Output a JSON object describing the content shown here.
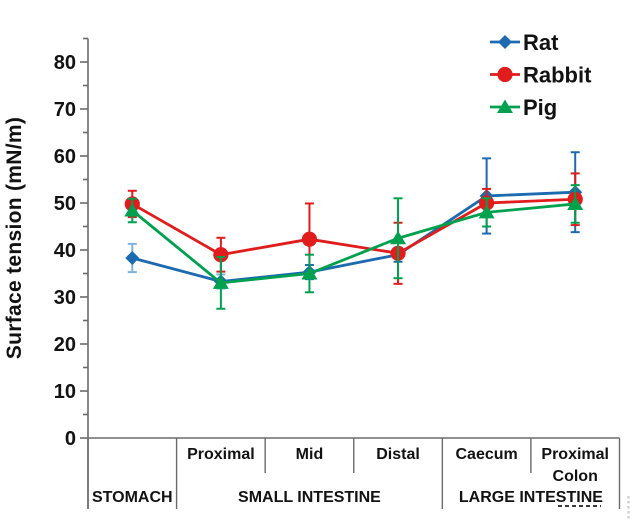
{
  "figure": {
    "background": "#ffffff"
  },
  "chart_data": {
    "type": "line",
    "title": "",
    "ylabel": "Surface tension (mN/m)",
    "xlabel": "",
    "ylim": [
      0,
      85
    ],
    "ytick_major_step": 10,
    "ytick_minor_step": 5,
    "grid": false,
    "legend_position": "top-right",
    "categories": [
      "Stomach",
      "Proximal",
      "Mid",
      "Distal",
      "Caecum",
      "Proximal Colon"
    ],
    "x_cell_labels": [
      "",
      "Proximal",
      "Mid",
      "Distal",
      "Caecum",
      "Proximal\nColon"
    ],
    "x_group_labels": [
      {
        "label": "STOMACH",
        "start": 0,
        "end": 1
      },
      {
        "label": "SMALL INTESTINE",
        "start": 1,
        "end": 4
      },
      {
        "label": "LARGE INTESTINE",
        "start": 4,
        "end": 6
      }
    ],
    "series": [
      {
        "name": "Rat",
        "marker": "diamond",
        "color": "#1c6bb0",
        "values": [
          38.3,
          33.3,
          35.3,
          39.0,
          51.5,
          52.3
        ],
        "errors": [
          3.0,
          1.5,
          1.5,
          1.5,
          8.0,
          8.5
        ],
        "error_colors": [
          "#7db3e0",
          "#7db3e0",
          null,
          null,
          null,
          null
        ]
      },
      {
        "name": "Rabbit",
        "marker": "circle",
        "color": "#e11c1c",
        "values": [
          49.8,
          39.0,
          42.3,
          39.3,
          50.0,
          50.8
        ],
        "errors": [
          2.8,
          3.6,
          7.6,
          6.5,
          3.0,
          5.5
        ]
      },
      {
        "name": "Pig",
        "marker": "triangle",
        "color": "#00a14e",
        "values": [
          48.4,
          33.0,
          35.0,
          42.5,
          48.0,
          49.8
        ],
        "errors": [
          2.5,
          5.5,
          4.0,
          8.5,
          3.0,
          4.0
        ]
      }
    ],
    "axis_color": "#6b6b6b",
    "text_color": "#121212"
  }
}
